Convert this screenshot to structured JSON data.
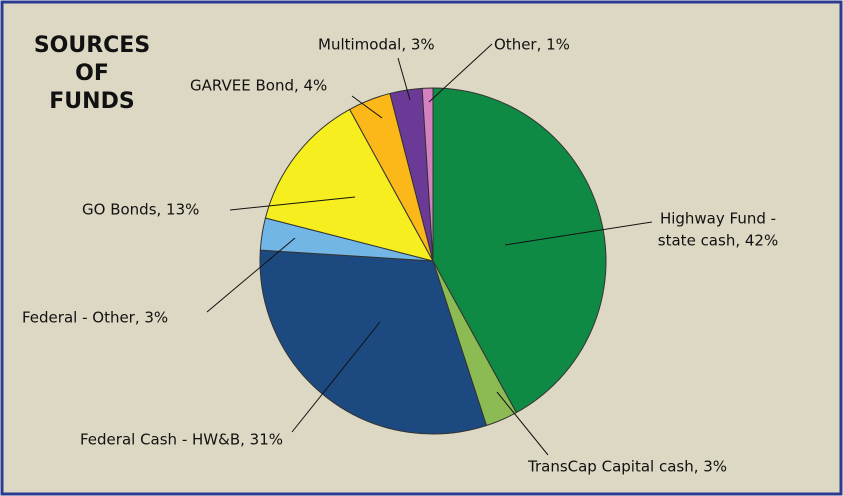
{
  "chart_data": {
    "type": "pie",
    "title": [
      "SOURCES",
      "OF",
      "FUNDS"
    ],
    "values": [
      42,
      3,
      31,
      3,
      13,
      4,
      3,
      1
    ],
    "value_labels": [
      [
        "Highway Fund -",
        "state cash, 42%"
      ],
      [
        "TransCap Capital cash, 3%"
      ],
      [
        "Federal Cash - HW&B, 31%"
      ],
      [
        "Federal - Other, 3%"
      ],
      [
        "GO Bonds, 13%"
      ],
      [
        "GARVEE Bond, 4%"
      ],
      [
        "Multimodal, 3%"
      ],
      [
        "Other, 1%"
      ]
    ],
    "colors": [
      "#0f8a44",
      "#8dbb53",
      "#1c4a80",
      "#72b6e6",
      "#f6ee1f",
      "#fbb818",
      "#6b3a97",
      "#d581c1"
    ]
  }
}
